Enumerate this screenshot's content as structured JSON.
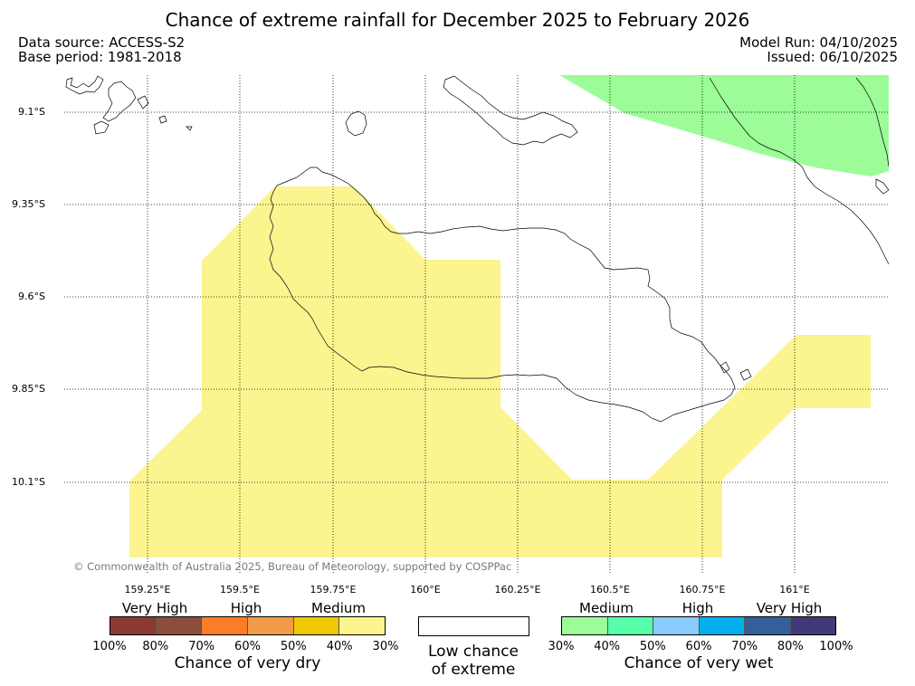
{
  "title": "Chance of extreme rainfall for December 2025 to February 2026",
  "meta": {
    "data_source": "Data source: ACCESS-S2",
    "base_period": "Base period: 1981-2018",
    "model_run": "Model Run: 04/10/2025",
    "issued": "Issued: 06/10/2025"
  },
  "map": {
    "lat_labels": [
      "9.1°S",
      "9.35°S",
      "9.6°S",
      "9.85°S",
      "10.1°S"
    ],
    "lon_labels": [
      "159.25°E",
      "159.5°E",
      "159.75°E",
      "160°E",
      "160.25°E",
      "160.5°E",
      "160.75°E",
      "161°E"
    ],
    "colors": {
      "medium_dry": "#fbf48f",
      "medium_wet": "#9bfc98",
      "coast": "#000000",
      "grid": "#000000"
    },
    "copyright": "© Commonwealth of Australia 2025, Bureau of Meteorology, supported by COSPPac"
  },
  "legend": {
    "dry": {
      "categories": [
        "Very High",
        "High",
        "Medium"
      ],
      "colors": [
        "#8b3a33",
        "#8b4e3c",
        "#fd7d26",
        "#ef9b49",
        "#efc800",
        "#fbf48f"
      ],
      "ticks": [
        "100%",
        "80%",
        "70%",
        "60%",
        "50%",
        "40%",
        "30%"
      ],
      "caption": "Chance of very dry"
    },
    "neutral": {
      "color": "#ffffff",
      "caption_line1": "Low chance",
      "caption_line2": "of extreme"
    },
    "wet": {
      "categories": [
        "Medium",
        "High",
        "Very High"
      ],
      "colors": [
        "#9bfc98",
        "#56fea8",
        "#87ccfa",
        "#01b0ed",
        "#355f9c",
        "#413a78"
      ],
      "ticks": [
        "30%",
        "40%",
        "50%",
        "60%",
        "70%",
        "80%",
        "100%"
      ],
      "caption": "Chance of very wet"
    }
  }
}
